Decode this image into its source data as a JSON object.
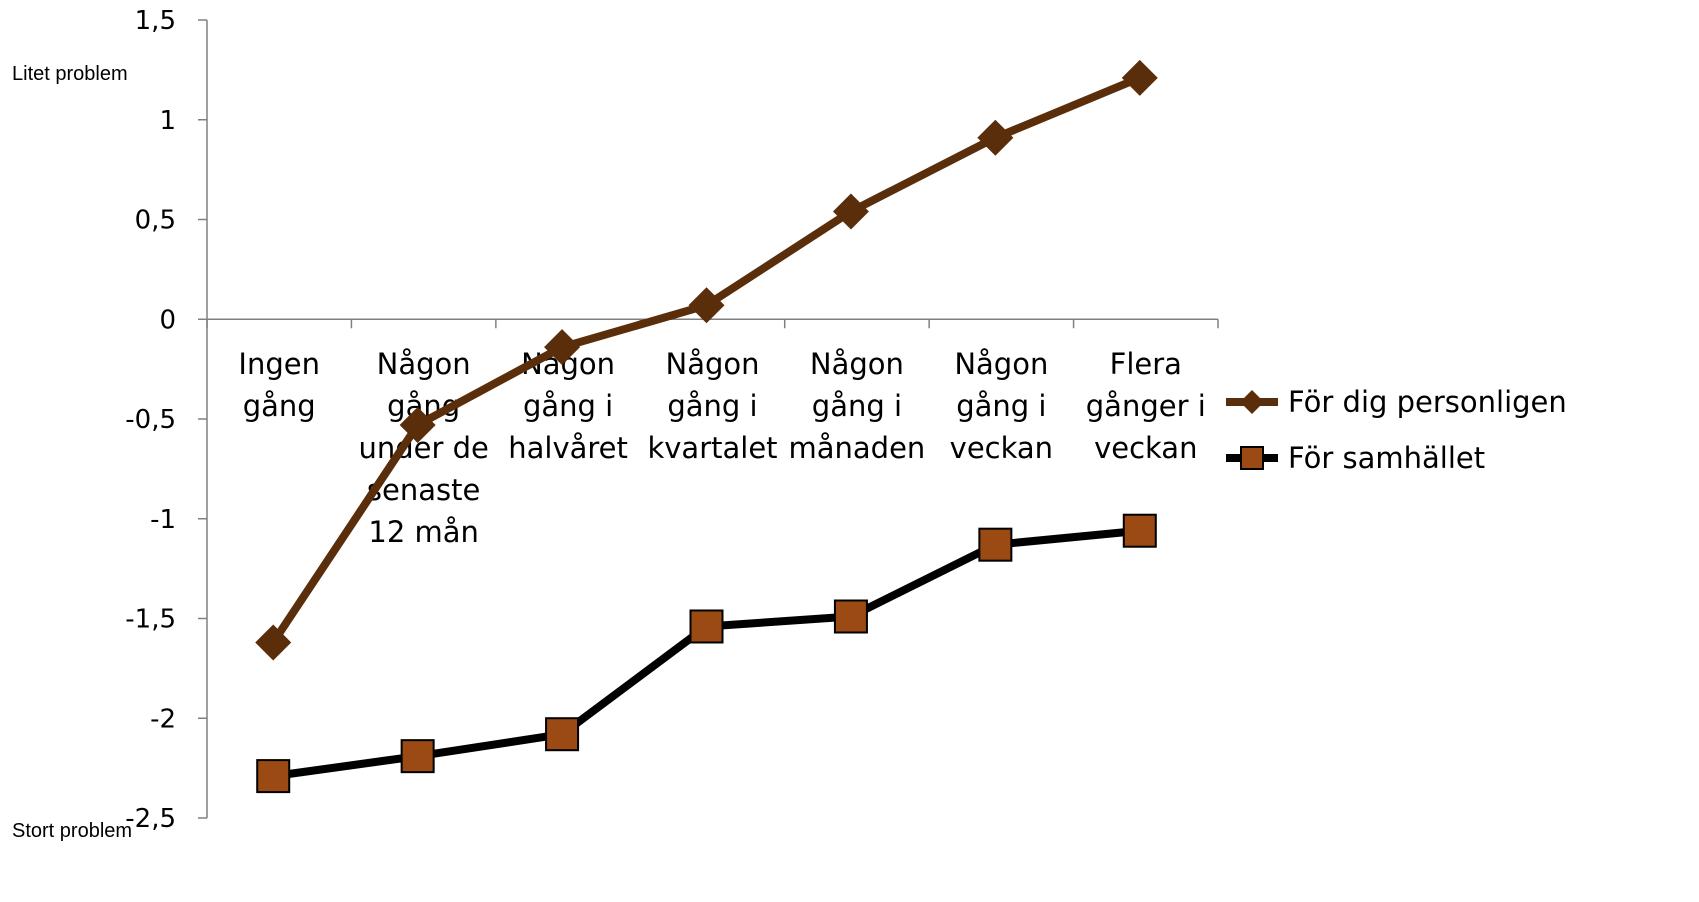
{
  "chart_data": {
    "type": "line",
    "categories": [
      [
        "Ingen",
        "gång"
      ],
      [
        "Någon",
        "gång",
        "under de",
        "senaste",
        "12 mån"
      ],
      [
        "Någon",
        "gång i",
        "halvåret"
      ],
      [
        "Någon",
        "gång i",
        "kvartalet"
      ],
      [
        "Någon",
        "gång i",
        "månaden"
      ],
      [
        "Någon",
        "gång i",
        "veckan"
      ],
      [
        "Flera",
        "gånger i",
        "veckan"
      ]
    ],
    "series": [
      {
        "name": "För dig personligen",
        "values": [
          -1.62,
          -0.53,
          -0.14,
          0.07,
          0.54,
          0.91,
          1.21
        ],
        "color": "#5b2e0b",
        "marker": "diamond"
      },
      {
        "name": "För samhället",
        "values": [
          -2.29,
          -2.19,
          -2.08,
          -1.54,
          -1.49,
          -1.13,
          -1.06
        ],
        "color": "#000000",
        "marker": "square",
        "marker_fill": "#9a4a12"
      }
    ],
    "ylim": [
      -2.5,
      1.5
    ],
    "yticks": [
      1.5,
      1,
      0.5,
      0,
      -0.5,
      -1,
      -1.5,
      -2,
      -2.5
    ],
    "ytick_labels": [
      "1,5",
      "1",
      "0,5",
      "0",
      "-0,5",
      "-1",
      "-1,5",
      "-2",
      "-2,5"
    ],
    "y_annotations": {
      "top": "Litet problem",
      "bottom": "Stort problem"
    },
    "grid": false,
    "legend_position": "right"
  }
}
